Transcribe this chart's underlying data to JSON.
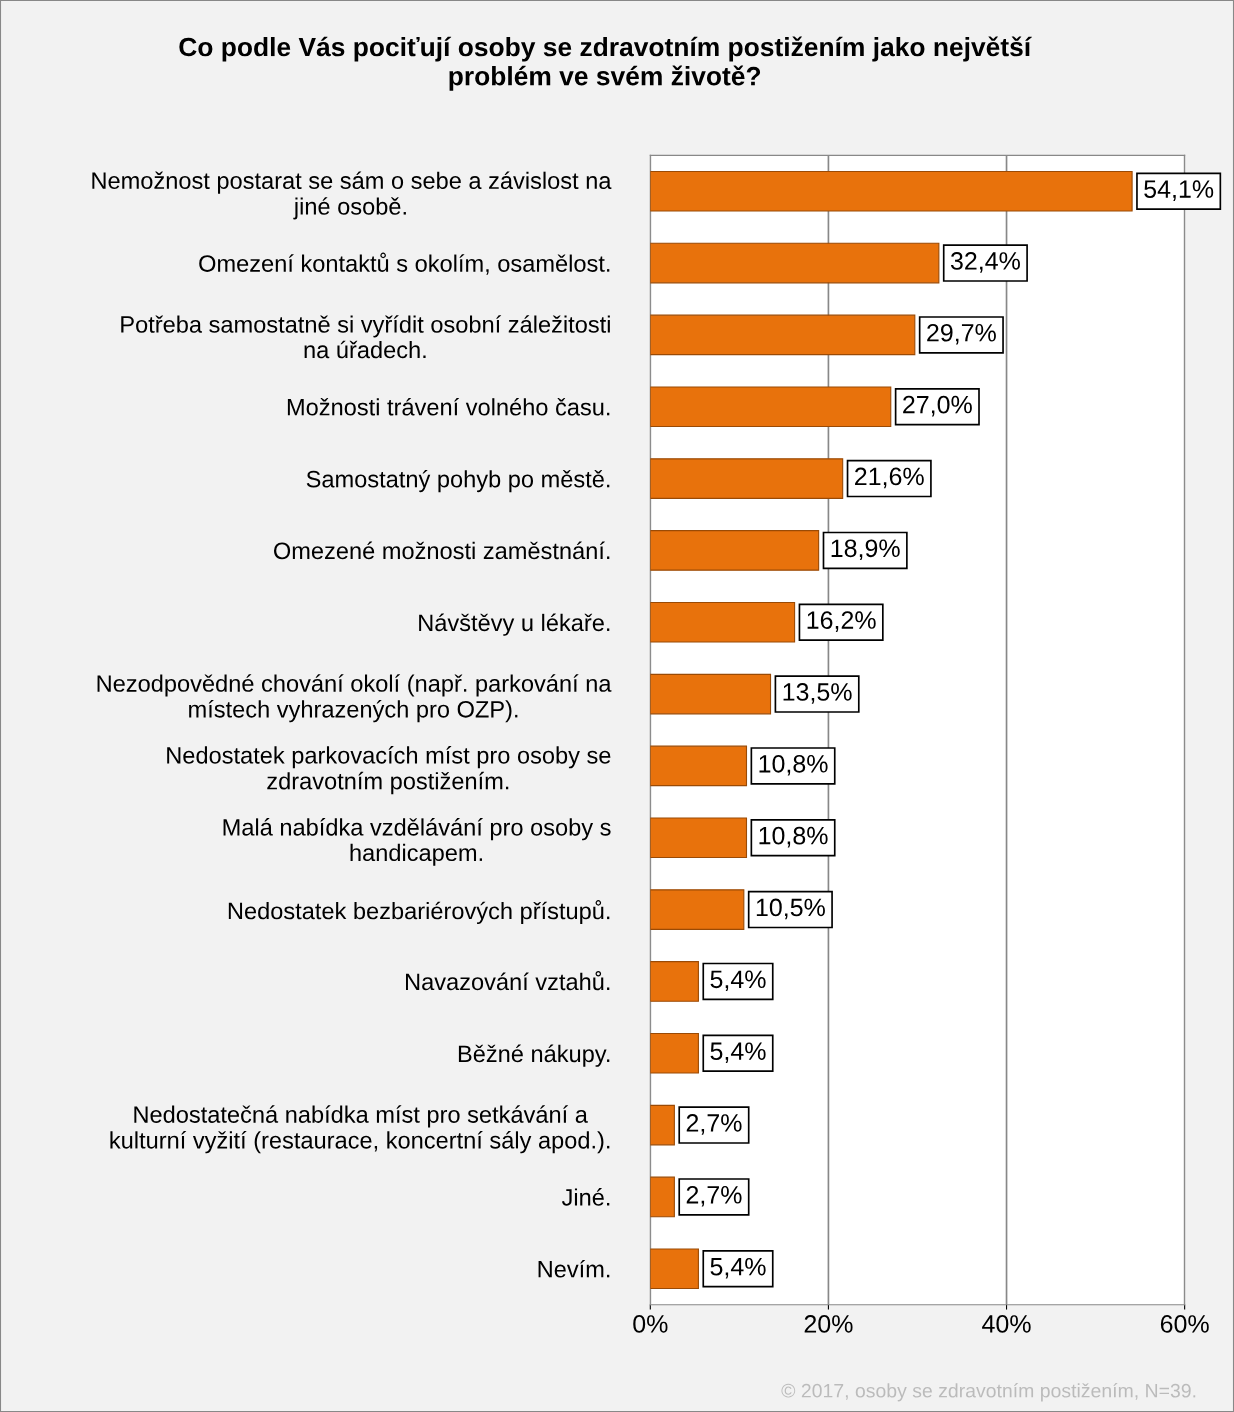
{
  "chart_data": {
    "type": "bar",
    "orientation": "horizontal",
    "title": "Co podle Vás pociťují osoby se zdravotním postižením jako největší\nproblém ve svém životě?",
    "categories": [
      "Nemožnost postarat se sám o sebe a závislost na\njiné osobě.",
      "Omezení kontaktů s okolím, osamělost.",
      "Potřeba samostatně si vyřídit osobní záležitosti\nna úřadech.",
      "Možnosti trávení volného času.",
      "Samostatný pohyb po městě.",
      "Omezené možnosti zaměstnání.",
      "Návštěvy u lékaře.",
      "Nezodpovědné chování okolí (např. parkování na\nmístech vyhrazených pro OZP).",
      "Nedostatek parkovacích míst pro osoby se\nzdravotním postižením.",
      "Malá nabídka vzdělávání pro osoby s\nhandicapem.",
      "Nedostatek bezbariérových přístupů.",
      "Navazování vztahů.",
      "Běžné nákupy.",
      "Nedostatečná nabídka míst pro setkávání a\nkulturní vyžití (restaurace, koncertní sály apod.).",
      "Jiné.",
      "Nevím."
    ],
    "values": [
      54.1,
      32.4,
      29.7,
      27.0,
      21.6,
      18.9,
      16.2,
      13.5,
      10.8,
      10.8,
      10.5,
      5.4,
      5.4,
      2.7,
      2.7,
      5.4
    ],
    "value_labels": [
      "54,1%",
      "32,4%",
      "29,7%",
      "27,0%",
      "21,6%",
      "18,9%",
      "16,2%",
      "13,5%",
      "10,8%",
      "10,8%",
      "10,5%",
      "5,4%",
      "5,4%",
      "2,7%",
      "2,7%",
      "5,4%"
    ],
    "color": "#e8720c",
    "xlim": [
      0,
      60
    ],
    "xticks": [
      {
        "value": 0,
        "label": "0%"
      },
      {
        "value": 20,
        "label": "20%"
      },
      {
        "value": 40,
        "label": "40%"
      },
      {
        "value": 60,
        "label": "60%"
      }
    ],
    "grid": "x",
    "annotations": [
      "© 2017, osoby se zdravotním postižením, N=39."
    ]
  }
}
